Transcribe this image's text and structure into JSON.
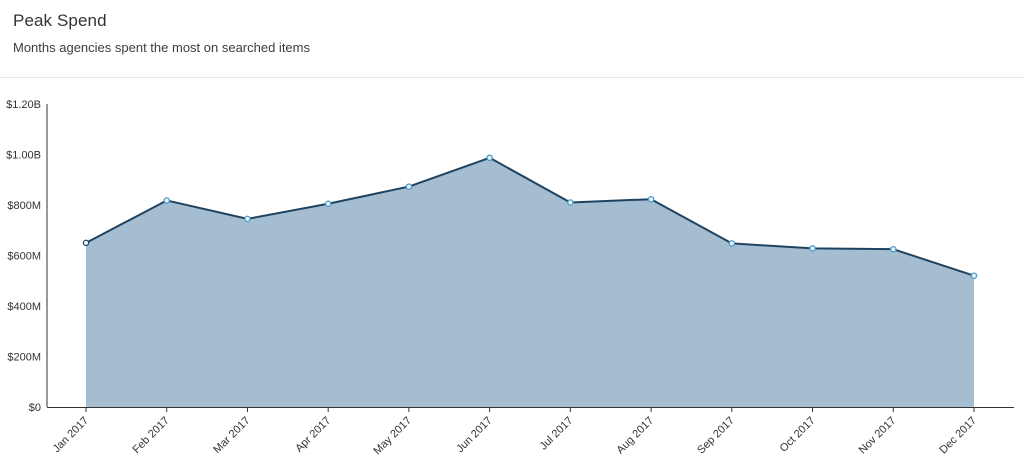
{
  "header": {
    "title": "Peak Spend",
    "subtitle": "Months agencies spent the most on searched items"
  },
  "colors": {
    "area_fill": "#a4bdd0",
    "line": "#1f4360",
    "marker_fill": "#e8f4fb",
    "marker_stroke": "#4a9bc9",
    "axis": "#333333"
  },
  "chart_data": {
    "type": "area",
    "categories": [
      "Jan 2017",
      "Feb 2017",
      "Mar 2017",
      "Apr 2017",
      "May 2017",
      "Jun 2017",
      "Jul 2017",
      "Aug 2017",
      "Sep 2017",
      "Oct 2017",
      "Nov 2017",
      "Dec 2017"
    ],
    "values": [
      650,
      818,
      745,
      805,
      873,
      987,
      810,
      823,
      648,
      628,
      625,
      520
    ],
    "value_unit": "millions of dollars",
    "yticks": [
      0,
      200,
      400,
      600,
      800,
      1000,
      1200
    ],
    "ytick_labels": [
      "$0",
      "$200M",
      "$400M",
      "$600M",
      "$800M",
      "$1.00B",
      "$1.20B"
    ],
    "ylim": [
      0,
      1200
    ],
    "grid": false,
    "legend": "none"
  }
}
